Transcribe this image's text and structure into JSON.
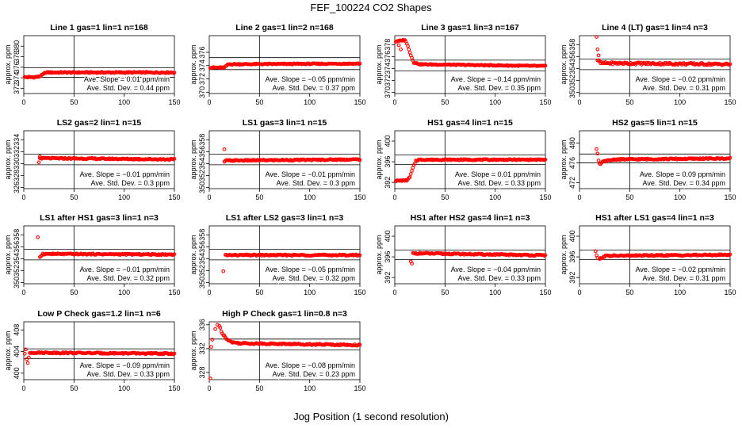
{
  "figure": {
    "title": "FEF_100224  CO2 Shapes",
    "xlabel": "Jog Position (1 second resolution)",
    "series_color": "#ff0000"
  },
  "chart_data": [
    {
      "type": "scatter",
      "title": "Line 1 gas=1 lin=1 n=168",
      "ylabel": "approx. ppm",
      "xlim": [
        0,
        150
      ],
      "ylim": [
        371,
        382
      ],
      "yticks": [
        372,
        374,
        376,
        378,
        380
      ],
      "xticks": [
        0,
        50,
        100,
        150
      ],
      "hlines": [
        375.9,
        374.1
      ],
      "vline": 50,
      "trace": {
        "x0": 1,
        "x1": 150,
        "step": 1,
        "base": 375.0,
        "noise": 0.12,
        "start": [
          [
            1,
            374.1
          ],
          [
            10,
            374.1
          ],
          [
            15,
            374.2
          ],
          [
            19,
            374.6
          ],
          [
            22,
            375.0
          ],
          [
            150,
            375.0
          ]
        ],
        "outliers": []
      },
      "slope": "Ave. Slope =  0.01  ppm/min",
      "stddev": "Ave. Std. Dev. =  0.44  ppm"
    },
    {
      "type": "scatter",
      "title": "Line 2 gas=1 lin=2 n=168",
      "ylabel": "approx. ppm",
      "xlim": [
        0,
        150
      ],
      "ylim": [
        369.8,
        378.5
      ],
      "yticks": [
        370,
        372,
        374,
        376
      ],
      "xticks": [
        0,
        50,
        100,
        150
      ],
      "hlines": [
        375.2,
        373.4
      ],
      "vline": 50,
      "trace": {
        "x0": 1,
        "x1": 150,
        "step": 1,
        "base": 374.3,
        "noise": 0.08,
        "start": [
          [
            1,
            373.7
          ],
          [
            15,
            373.7
          ],
          [
            19,
            374.2
          ],
          [
            150,
            374.3
          ]
        ],
        "outliers": []
      },
      "slope": "Ave. Slope = −0.05  ppm/min",
      "stddev": "Ave. Std. Dev. =  0.37  ppm"
    },
    {
      "type": "scatter",
      "title": "Line 3 gas=1 lin=3 n=167",
      "ylabel": "approx. ppm",
      "xlim": [
        0,
        150
      ],
      "ylim": [
        369.8,
        379.5
      ],
      "yticks": [
        370,
        372,
        374,
        376,
        378
      ],
      "xticks": [
        0,
        50,
        100,
        150
      ],
      "hlines": [
        375.4,
        373.6
      ],
      "vline": 50,
      "trace": {
        "x0": 1,
        "x1": 150,
        "step": 1,
        "base": 374.5,
        "noise": 0.08,
        "start": [
          [
            1,
            378.5
          ],
          [
            10,
            378.8
          ],
          [
            13,
            377.8
          ],
          [
            16,
            376.2
          ],
          [
            19,
            375.0
          ],
          [
            25,
            374.7
          ],
          [
            150,
            374.4
          ]
        ],
        "outliers": [
          [
            6,
            377.2
          ],
          [
            4,
            377.9
          ]
        ]
      },
      "slope": "Ave. Slope = −0.14  ppm/min",
      "stddev": "Ave. Std. Dev. =  0.35  ppm"
    },
    {
      "type": "scatter",
      "title": "Line 4 (LT) gas=1 lin=4 n=3",
      "ylabel": "approx. ppm",
      "xlim": [
        0,
        150
      ],
      "ylim": [
        349.8,
        359.5
      ],
      "yticks": [
        350,
        352,
        354,
        356,
        358
      ],
      "xticks": [
        0,
        50,
        100,
        150
      ],
      "hlines": [
        355.6,
        353.8
      ],
      "vline": 50,
      "trace": {
        "x0": 18,
        "x1": 150,
        "step": 1,
        "base": 354.7,
        "noise": 0.18,
        "start": [
          [
            18,
            355.4
          ],
          [
            21,
            354.9
          ],
          [
            150,
            354.7
          ]
        ],
        "outliers": [
          [
            17,
            359.3
          ],
          [
            18,
            357.2
          ],
          [
            19,
            356.2
          ]
        ]
      },
      "slope": "Ave. Slope = −0.02  ppm/min",
      "stddev": "Ave. Std. Dev. =  0.31  ppm"
    },
    {
      "type": "scatter",
      "title": "LS2 gas=2 lin=1 n=15",
      "ylabel": "approx. ppm",
      "xlim": [
        0,
        150
      ],
      "ylim": [
        325.8,
        335.5
      ],
      "yticks": [
        326,
        328,
        330,
        332,
        334
      ],
      "xticks": [
        0,
        50,
        100,
        150
      ],
      "hlines": [
        331.6,
        329.8
      ],
      "vline": 50,
      "trace": {
        "x0": 16,
        "x1": 150,
        "step": 1,
        "base": 330.7,
        "noise": 0.1,
        "start": [
          [
            16,
            330.9
          ],
          [
            150,
            330.7
          ]
        ],
        "outliers": [
          [
            15,
            330.2
          ],
          [
            16,
            331.2
          ]
        ]
      },
      "slope": "Ave. Slope = −0.01  ppm/min",
      "stddev": "Ave. Std. Dev. =  0.3  ppm"
    },
    {
      "type": "scatter",
      "title": "LS1 gas=3 lin=1 n=15",
      "ylabel": "approx. ppm",
      "xlim": [
        0,
        150
      ],
      "ylim": [
        349.8,
        359.5
      ],
      "yticks": [
        350,
        352,
        354,
        356,
        358
      ],
      "xticks": [
        0,
        50,
        100,
        150
      ],
      "hlines": [
        355.6,
        353.8
      ],
      "vline": 50,
      "trace": {
        "x0": 16,
        "x1": 150,
        "step": 1,
        "base": 354.7,
        "noise": 0.1,
        "start": [
          [
            16,
            354.5
          ],
          [
            150,
            354.7
          ]
        ],
        "outliers": [
          [
            15,
            356.4
          ],
          [
            15,
            354.3
          ]
        ]
      },
      "slope": "Ave. Slope = −0.01  ppm/min",
      "stddev": "Ave. Std. Dev. =  0.3  ppm"
    },
    {
      "type": "scatter",
      "title": "HS1 gas=4 lin=1 n=15",
      "ylabel": "approx. ppm",
      "xlim": [
        0,
        150
      ],
      "ylim": [
        390.8,
        402
      ],
      "yticks": [
        392,
        396,
        400
      ],
      "xticks": [
        0,
        50,
        100,
        150
      ],
      "hlines": [
        397.3,
        395.5
      ],
      "vline": 50,
      "trace": {
        "x0": 1,
        "x1": 150,
        "step": 1,
        "base": 396.4,
        "noise": 0.1,
        "start": [
          [
            1,
            392.3
          ],
          [
            12,
            392.4
          ],
          [
            15,
            393.0
          ],
          [
            18,
            394.8
          ],
          [
            21,
            396.2
          ],
          [
            24,
            396.4
          ],
          [
            150,
            396.4
          ]
        ],
        "outliers": []
      },
      "slope": "Ave. Slope =  0.01  ppm/min",
      "stddev": "Ave. Std. Dev. =  0.33  ppm"
    },
    {
      "type": "scatter",
      "title": "HS2 gas=5 lin=1 n=15",
      "ylabel": "approx. ppm",
      "xlim": [
        0,
        150
      ],
      "ylim": [
        470.8,
        482.5
      ],
      "yticks": [
        472,
        476,
        480
      ],
      "xticks": [
        0,
        50,
        100,
        150
      ],
      "hlines": [
        477.8,
        476.0
      ],
      "vline": 50,
      "trace": {
        "x0": 20,
        "x1": 150,
        "step": 1,
        "base": 476.8,
        "noise": 0.13,
        "start": [
          [
            20,
            475.7
          ],
          [
            24,
            476.3
          ],
          [
            35,
            476.7
          ],
          [
            150,
            476.9
          ]
        ],
        "outliers": [
          [
            17,
            478.8
          ],
          [
            18,
            477.9
          ],
          [
            19,
            476.5
          ]
        ]
      },
      "slope": "Ave. Slope =  0.09  ppm/min",
      "stddev": "Ave. Std. Dev. =  0.34  ppm"
    },
    {
      "type": "scatter",
      "title": "LS1 after HS1 gas=3 lin=1 n=3",
      "ylabel": "approx. ppm",
      "xlim": [
        0,
        150
      ],
      "ylim": [
        349.8,
        359.5
      ],
      "yticks": [
        350,
        352,
        354,
        356,
        358
      ],
      "xticks": [
        0,
        50,
        100,
        150
      ],
      "hlines": [
        355.6,
        353.8
      ],
      "vline": 50,
      "trace": {
        "x0": 16,
        "x1": 150,
        "step": 1,
        "base": 354.8,
        "noise": 0.1,
        "start": [
          [
            16,
            354.3
          ],
          [
            19,
            354.8
          ],
          [
            150,
            354.7
          ]
        ],
        "outliers": [
          [
            14,
            357.6
          ]
        ]
      },
      "slope": "Ave. Slope = −0.01  ppm/min",
      "stddev": "Ave. Std. Dev. =  0.32  ppm"
    },
    {
      "type": "scatter",
      "title": "LS1 after LS2 gas=3 lin=1 n=3",
      "ylabel": "approx. ppm",
      "xlim": [
        0,
        150
      ],
      "ylim": [
        349.8,
        359.5
      ],
      "yticks": [
        350,
        352,
        354,
        356,
        358
      ],
      "xticks": [
        0,
        50,
        100,
        150
      ],
      "hlines": [
        355.6,
        353.8
      ],
      "vline": 50,
      "trace": {
        "x0": 16,
        "x1": 150,
        "step": 1,
        "base": 354.6,
        "noise": 0.1,
        "start": [
          [
            16,
            354.6
          ],
          [
            150,
            354.6
          ]
        ],
        "outliers": [
          [
            14,
            351.9
          ]
        ]
      },
      "slope": "Ave. Slope = −0.05  ppm/min",
      "stddev": "Ave. Std. Dev. =  0.32  ppm"
    },
    {
      "type": "scatter",
      "title": "HS1 after HS2 gas=4 lin=1 n=3",
      "ylabel": "approx. ppm",
      "xlim": [
        0,
        150
      ],
      "ylim": [
        390.8,
        402
      ],
      "yticks": [
        392,
        396,
        400
      ],
      "xticks": [
        0,
        50,
        100,
        150
      ],
      "hlines": [
        397.3,
        395.5
      ],
      "vline": 50,
      "trace": {
        "x0": 18,
        "x1": 150,
        "step": 1,
        "base": 396.4,
        "noise": 0.13,
        "start": [
          [
            18,
            396.7
          ],
          [
            150,
            396.3
          ]
        ],
        "outliers": [
          [
            16,
            395.1
          ],
          [
            17,
            394.7
          ]
        ]
      },
      "slope": "Ave. Slope = −0.04  ppm/min",
      "stddev": "Ave. Std. Dev. =  0.33  ppm"
    },
    {
      "type": "scatter",
      "title": "HS1 after LS1 gas=4 lin=1 n=3",
      "ylabel": "approx. ppm",
      "xlim": [
        0,
        150
      ],
      "ylim": [
        390.8,
        402
      ],
      "yticks": [
        392,
        396,
        400
      ],
      "xticks": [
        0,
        50,
        100,
        150
      ],
      "hlines": [
        397.3,
        395.5
      ],
      "vline": 50,
      "trace": {
        "x0": 20,
        "x1": 150,
        "step": 1,
        "base": 396.4,
        "noise": 0.12,
        "start": [
          [
            20,
            395.6
          ],
          [
            26,
            396.2
          ],
          [
            150,
            396.4
          ]
        ],
        "outliers": [
          [
            16,
            397.1
          ],
          [
            17,
            396.3
          ],
          [
            18,
            395.8
          ]
        ]
      },
      "slope": "Ave. Slope = −0.02  ppm/min",
      "stddev": "Ave. Std. Dev. =  0.31  ppm"
    },
    {
      "type": "scatter",
      "title": "Low P Check gas=1.2 lin=1 n=6",
      "ylabel": "approx. ppm",
      "xlim": [
        0,
        150
      ],
      "ylim": [
        398.8,
        409.5
      ],
      "yticks": [
        400,
        404,
        408
      ],
      "xticks": [
        0,
        50,
        100,
        150
      ],
      "hlines": [
        404.5,
        402.7
      ],
      "vline": 50,
      "trace": {
        "x0": 6,
        "x1": 150,
        "step": 1,
        "base": 403.7,
        "noise": 0.12,
        "start": [
          [
            6,
            403.8
          ],
          [
            150,
            403.6
          ]
        ],
        "outliers": [
          [
            1,
            403.6
          ],
          [
            2,
            404.4
          ],
          [
            3,
            402.6
          ],
          [
            4,
            401.9
          ],
          [
            5,
            402.9
          ]
        ]
      },
      "slope": "Ave. Slope = −0.09  ppm/min",
      "stddev": "Ave. Std. Dev. =  0.33  ppm"
    },
    {
      "type": "scatter",
      "title": "High P Check gas=1 lin=0.8 n=3",
      "ylabel": "approx. ppm",
      "xlim": [
        0,
        150
      ],
      "ylim": [
        326.8,
        336.5
      ],
      "yticks": [
        328,
        332,
        336
      ],
      "xticks": [
        0,
        50,
        100,
        150
      ],
      "hlines": [
        333.6,
        331.8
      ],
      "vline": 50,
      "trace": {
        "x0": 10,
        "x1": 150,
        "step": 1,
        "base": 332.7,
        "noise": 0.12,
        "start": [
          [
            10,
            335.8
          ],
          [
            13,
            334.6
          ],
          [
            17,
            333.7
          ],
          [
            22,
            333.1
          ],
          [
            30,
            332.9
          ],
          [
            150,
            332.6
          ]
        ],
        "outliers": [
          [
            1,
            327.0
          ],
          [
            2,
            332.3
          ],
          [
            3,
            333.5
          ],
          [
            6,
            335.3
          ],
          [
            8,
            336.0
          ]
        ]
      },
      "slope": "Ave. Slope = −0.08  ppm/min",
      "stddev": "Ave. Std. Dev. =  0.23  ppm"
    }
  ]
}
